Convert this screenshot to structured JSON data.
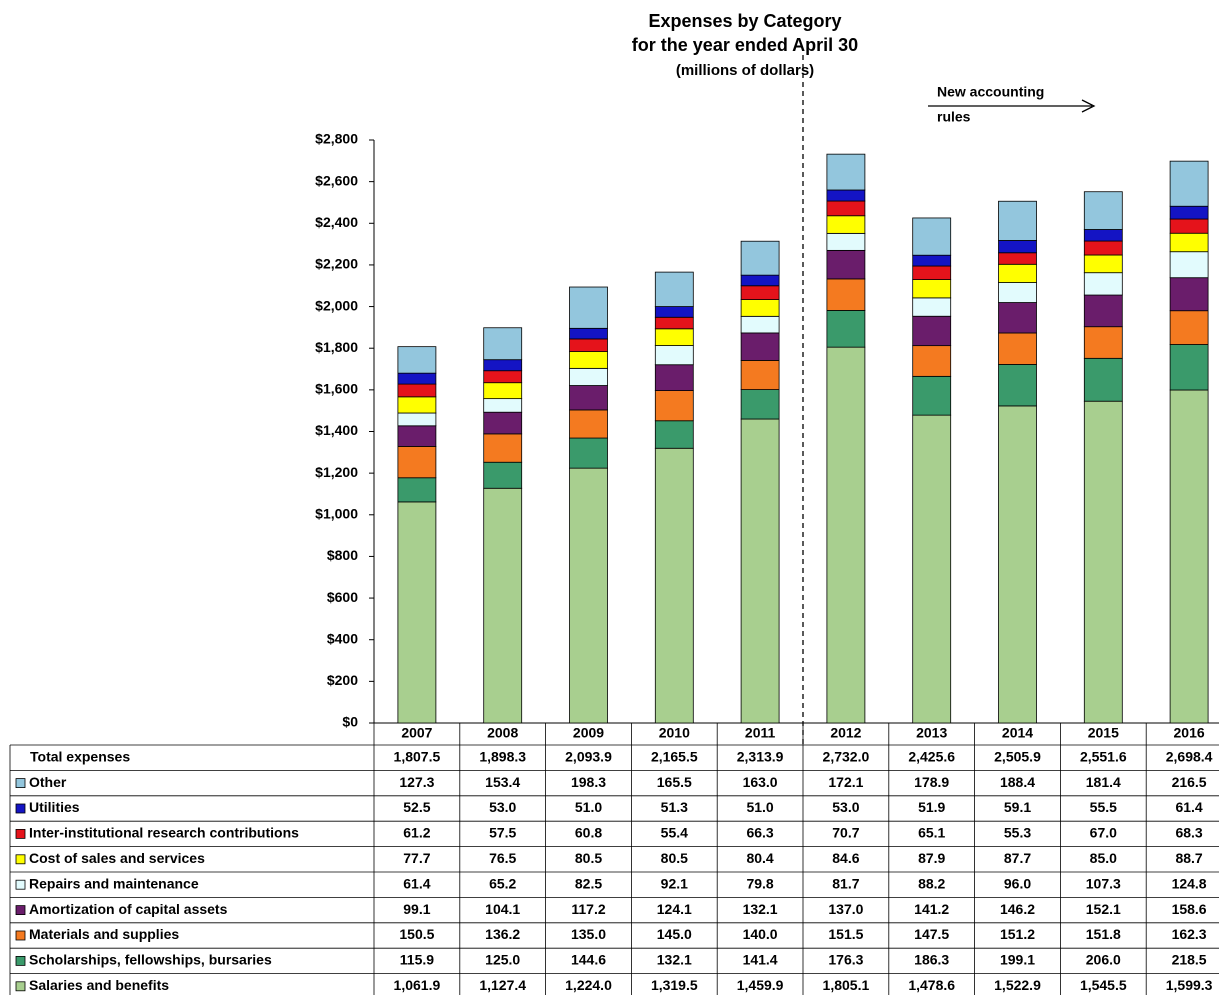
{
  "chart_data": {
    "type": "stacked_bar",
    "title": "Expenses by Category",
    "subtitle": "for the year ended April 30",
    "units_note": "(millions of dollars)",
    "annotation": [
      "New accounting",
      "rules"
    ],
    "categories": [
      "2007",
      "2008",
      "2009",
      "2010",
      "2011",
      "2012",
      "2013",
      "2014",
      "2015",
      "2016"
    ],
    "ylim": [
      0,
      2800
    ],
    "yticks": [
      {
        "value": 0,
        "label": "$0"
      },
      {
        "value": 200,
        "label": "$200"
      },
      {
        "value": 400,
        "label": "$400"
      },
      {
        "value": 600,
        "label": "$600"
      },
      {
        "value": 800,
        "label": "$800"
      },
      {
        "value": 1000,
        "label": "$1,000"
      },
      {
        "value": 1200,
        "label": "$1,200"
      },
      {
        "value": 1400,
        "label": "$1,400"
      },
      {
        "value": 1600,
        "label": "$1,600"
      },
      {
        "value": 1800,
        "label": "$1,800"
      },
      {
        "value": 2000,
        "label": "$2,000"
      },
      {
        "value": 2200,
        "label": "$2,200"
      },
      {
        "value": 2400,
        "label": "$2,400"
      },
      {
        "value": 2600,
        "label": "$2,600"
      },
      {
        "value": 2800,
        "label": "$2,800"
      }
    ],
    "totals": {
      "name": "Total expenses",
      "values": [
        1807.5,
        1898.3,
        2093.9,
        2165.5,
        2313.9,
        2732.0,
        2425.6,
        2505.9,
        2551.6,
        2698.4
      ],
      "value_labels": [
        "1,807.5",
        "1,898.3",
        "2,093.9",
        "2,165.5",
        "2,313.9",
        "2,732.0",
        "2,425.6",
        "2,505.9",
        "2,551.6",
        "2,698.4"
      ]
    },
    "series": [
      {
        "name": "Salaries and benefits",
        "color": "#a8cf8f",
        "values": [
          1061.9,
          1127.4,
          1224.0,
          1319.5,
          1459.9,
          1805.1,
          1478.6,
          1522.9,
          1545.5,
          1599.3
        ],
        "value_labels": [
          "1,061.9",
          "1,127.4",
          "1,224.0",
          "1,319.5",
          "1,459.9",
          "1,805.1",
          "1,478.6",
          "1,522.9",
          "1,545.5",
          "1,599.3"
        ]
      },
      {
        "name": "Scholarships, fellowships, bursaries",
        "color": "#3a9a6b",
        "values": [
          115.9,
          125.0,
          144.6,
          132.1,
          141.4,
          176.3,
          186.3,
          199.1,
          206.0,
          218.5
        ],
        "value_labels": [
          "115.9",
          "125.0",
          "144.6",
          "132.1",
          "141.4",
          "176.3",
          "186.3",
          "199.1",
          "206.0",
          "218.5"
        ]
      },
      {
        "name": "Materials and supplies",
        "color": "#f47a20",
        "values": [
          150.5,
          136.2,
          135.0,
          145.0,
          140.0,
          151.5,
          147.5,
          151.2,
          151.8,
          162.3
        ],
        "value_labels": [
          "150.5",
          "136.2",
          "135.0",
          "145.0",
          "140.0",
          "151.5",
          "147.5",
          "151.2",
          "151.8",
          "162.3"
        ]
      },
      {
        "name": "Amortization of capital assets",
        "color": "#6a1d6b",
        "values": [
          99.1,
          104.1,
          117.2,
          124.1,
          132.1,
          137.0,
          141.2,
          146.2,
          152.1,
          158.6
        ],
        "value_labels": [
          "99.1",
          "104.1",
          "117.2",
          "124.1",
          "132.1",
          "137.0",
          "141.2",
          "146.2",
          "152.1",
          "158.6"
        ]
      },
      {
        "name": "Repairs and maintenance",
        "color": "#e2fbfd",
        "values": [
          61.4,
          65.2,
          82.5,
          92.1,
          79.8,
          81.7,
          88.2,
          96.0,
          107.3,
          124.8
        ],
        "value_labels": [
          "61.4",
          "65.2",
          "82.5",
          "92.1",
          "79.8",
          "81.7",
          "88.2",
          "96.0",
          "107.3",
          "124.8"
        ]
      },
      {
        "name": "Cost of sales and services",
        "color": "#ffff00",
        "values": [
          77.7,
          76.5,
          80.5,
          80.5,
          80.4,
          84.6,
          87.9,
          87.7,
          85.0,
          88.7
        ],
        "value_labels": [
          "77.7",
          "76.5",
          "80.5",
          "80.5",
          "80.4",
          "84.6",
          "87.9",
          "87.7",
          "85.0",
          "88.7"
        ]
      },
      {
        "name": "Inter-institutional research contributions",
        "color": "#e5131b",
        "values": [
          61.2,
          57.5,
          60.8,
          55.4,
          66.3,
          70.7,
          65.1,
          55.3,
          67.0,
          68.3
        ],
        "value_labels": [
          "61.2",
          "57.5",
          "60.8",
          "55.4",
          "66.3",
          "70.7",
          "65.1",
          "55.3",
          "67.0",
          "68.3"
        ]
      },
      {
        "name": "Utilities",
        "color": "#1414c4",
        "values": [
          52.5,
          53.0,
          51.0,
          51.3,
          51.0,
          53.0,
          51.9,
          59.1,
          55.5,
          61.4
        ],
        "value_labels": [
          "52.5",
          "53.0",
          "51.0",
          "51.3",
          "51.0",
          "53.0",
          "51.9",
          "59.1",
          "55.5",
          "61.4"
        ]
      },
      {
        "name": "Other",
        "color": "#93c6dd",
        "values": [
          127.3,
          153.4,
          198.3,
          165.5,
          163.0,
          172.1,
          178.9,
          188.4,
          181.4,
          216.5
        ],
        "value_labels": [
          "127.3",
          "153.4",
          "198.3",
          "165.5",
          "163.0",
          "172.1",
          "178.9",
          "188.4",
          "181.4",
          "216.5"
        ]
      }
    ]
  }
}
